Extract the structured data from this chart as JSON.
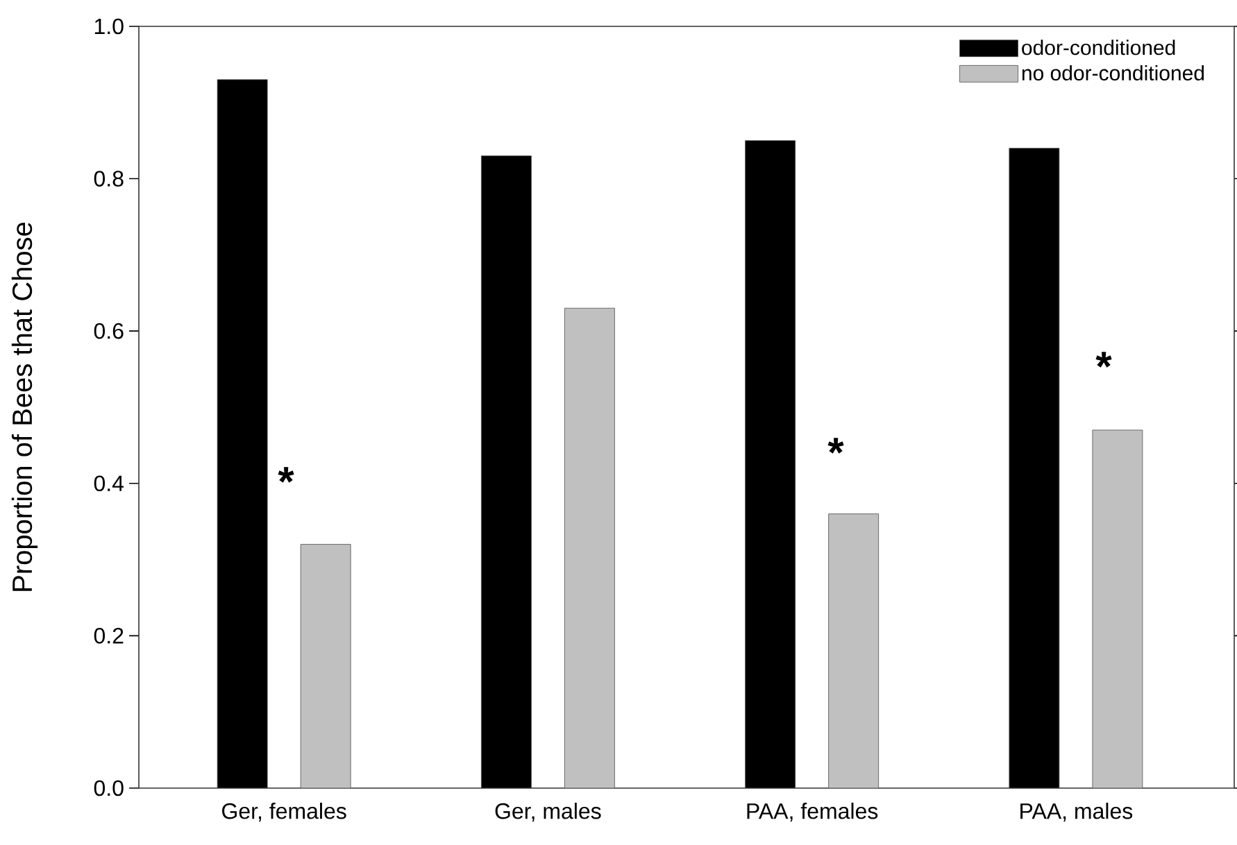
{
  "chart_data": {
    "type": "bar",
    "ylabel": "Proportion of Bees that Chose",
    "categories": [
      "Ger, females",
      "Ger, males",
      "PAA, females",
      "PAA, males"
    ],
    "series": [
      {
        "name": "odor-conditioned",
        "color": "#000000",
        "values": [
          0.93,
          0.83,
          0.85,
          0.84
        ]
      },
      {
        "name": "no odor-conditioned",
        "color": "#c0c0c0",
        "values": [
          0.32,
          0.63,
          0.36,
          0.47
        ]
      }
    ],
    "ylim": [
      0,
      1.0
    ],
    "yticks": [
      {
        "value": 0,
        "label": "0.0"
      },
      {
        "value": 0.2,
        "label": "0.2"
      },
      {
        "value": 0.4,
        "label": "0.4"
      },
      {
        "value": 0.6,
        "label": "0.6"
      },
      {
        "value": 0.8,
        "label": "0.8"
      },
      {
        "value": 1.0,
        "label": "1.0"
      }
    ],
    "annotations": [
      "*",
      "*",
      "*"
    ],
    "legend": "top right",
    "grid": false
  }
}
